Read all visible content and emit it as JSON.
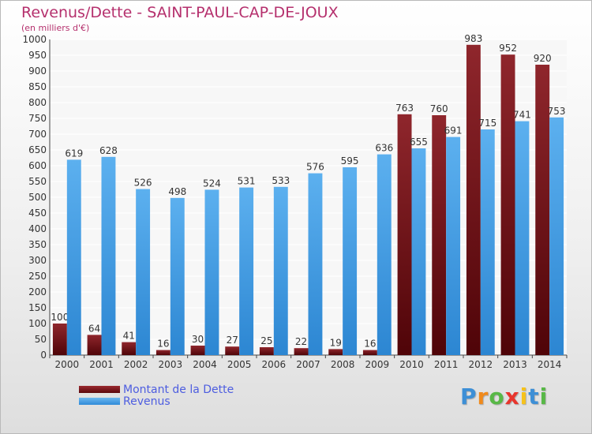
{
  "chart_data": {
    "type": "bar",
    "title": "Revenus/Dette - SAINT-PAUL-CAP-DE-JOUX",
    "subtitle": "(en milliers d'€)",
    "categories": [
      "2000",
      "2001",
      "2002",
      "2003",
      "2004",
      "2005",
      "2006",
      "2007",
      "2008",
      "2009",
      "2010",
      "2011",
      "2012",
      "2013",
      "2014"
    ],
    "series": [
      {
        "name": "Montant de la Dette",
        "color": "#6e0f14",
        "values": [
          100,
          64,
          41,
          16,
          30,
          27,
          25,
          22,
          19,
          16,
          763,
          760,
          983,
          952,
          920
        ]
      },
      {
        "name": "Revenus",
        "color": "#3f9ee6",
        "values": [
          619,
          628,
          526,
          498,
          524,
          531,
          533,
          576,
          595,
          636,
          655,
          691,
          715,
          741,
          753
        ]
      }
    ],
    "ylim": [
      0,
      1000
    ],
    "ytick_step": 50,
    "grid": true,
    "legend_position": "bottom-left"
  },
  "logo": {
    "letters": [
      "P",
      "r",
      "o",
      "x",
      "i",
      "t",
      "i"
    ],
    "colors": [
      "#3d8fd6",
      "#f08a1c",
      "#58b847",
      "#e8352c",
      "#f6c21b",
      "#3d8fd6",
      "#58b847"
    ]
  }
}
